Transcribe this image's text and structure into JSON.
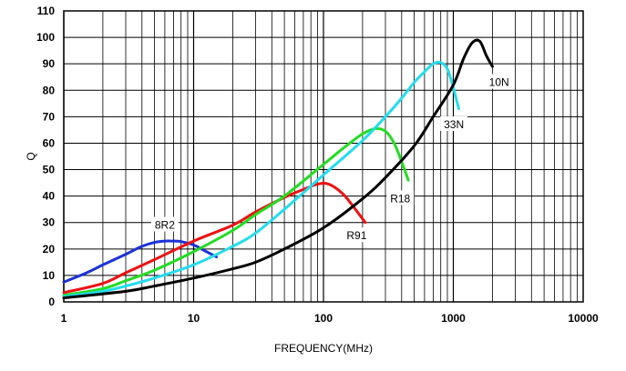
{
  "chart_data": {
    "type": "line",
    "x_scale": "log",
    "title": "",
    "xlabel": "FREQUENCY(MHz)",
    "ylabel": "Q",
    "xlim": [
      1,
      10000
    ],
    "ylim": [
      0,
      110
    ],
    "grid": true,
    "x_ticks": [
      {
        "value": 1,
        "label": "1"
      },
      {
        "value": 10,
        "label": "10"
      },
      {
        "value": 100,
        "label": "100"
      },
      {
        "value": 1000,
        "label": "1000"
      },
      {
        "value": 10000,
        "label": "10000"
      }
    ],
    "y_ticks": [
      {
        "value": 0,
        "label": "0"
      },
      {
        "value": 10,
        "label": "10"
      },
      {
        "value": 20,
        "label": "20"
      },
      {
        "value": 30,
        "label": "30"
      },
      {
        "value": 40,
        "label": "40"
      },
      {
        "value": 50,
        "label": "50"
      },
      {
        "value": 60,
        "label": "60"
      },
      {
        "value": 70,
        "label": "70"
      },
      {
        "value": 80,
        "label": "80"
      },
      {
        "value": 90,
        "label": "90"
      },
      {
        "value": 100,
        "label": "100"
      },
      {
        "value": 110,
        "label": "110"
      }
    ],
    "series": [
      {
        "name": "8R2",
        "color": "#1a32d8",
        "label_at": [
          6,
          28
        ],
        "points": [
          [
            1,
            7.5
          ],
          [
            1.5,
            11
          ],
          [
            2,
            14
          ],
          [
            3,
            18
          ],
          [
            4,
            21
          ],
          [
            5,
            22.5
          ],
          [
            6,
            23
          ],
          [
            7,
            23
          ],
          [
            8,
            22.8
          ],
          [
            10,
            21.5
          ],
          [
            12,
            19.5
          ],
          [
            15,
            17
          ]
        ]
      },
      {
        "name": "R91",
        "color": "#ee1111",
        "label_at": [
          180,
          24
        ],
        "points": [
          [
            1,
            3.5
          ],
          [
            2,
            7
          ],
          [
            3,
            11
          ],
          [
            5,
            16
          ],
          [
            10,
            23
          ],
          [
            20,
            29
          ],
          [
            30,
            34
          ],
          [
            50,
            39.5
          ],
          [
            70,
            42.5
          ],
          [
            90,
            44.5
          ],
          [
            110,
            44.5
          ],
          [
            140,
            41
          ],
          [
            170,
            36
          ],
          [
            210,
            30
          ]
        ]
      },
      {
        "name": "R18",
        "color": "#22dd22",
        "label_at": [
          390,
          38
        ],
        "points": [
          [
            1,
            2.5
          ],
          [
            2,
            5
          ],
          [
            3,
            8
          ],
          [
            5,
            12
          ],
          [
            10,
            19
          ],
          [
            20,
            27
          ],
          [
            30,
            33
          ],
          [
            50,
            40
          ],
          [
            100,
            52
          ],
          [
            150,
            59
          ],
          [
            200,
            63.5
          ],
          [
            250,
            65.5
          ],
          [
            300,
            64.5
          ],
          [
            350,
            60
          ],
          [
            400,
            53
          ],
          [
            450,
            46
          ]
        ]
      },
      {
        "name": "33N",
        "color": "#22ddee",
        "label_at": [
          1010,
          66
        ],
        "points": [
          [
            1,
            2
          ],
          [
            2,
            4
          ],
          [
            3,
            6
          ],
          [
            5,
            9
          ],
          [
            10,
            14
          ],
          [
            20,
            21
          ],
          [
            30,
            26
          ],
          [
            50,
            35
          ],
          [
            100,
            48
          ],
          [
            200,
            61
          ],
          [
            300,
            70
          ],
          [
            400,
            77
          ],
          [
            500,
            83
          ],
          [
            600,
            87
          ],
          [
            700,
            90
          ],
          [
            800,
            90.5
          ],
          [
            900,
            88
          ],
          [
            1000,
            81
          ],
          [
            1100,
            73
          ]
        ]
      },
      {
        "name": "10N",
        "color": "#000000",
        "label_at": [
          2250,
          82
        ],
        "points": [
          [
            1,
            1.5
          ],
          [
            3,
            4
          ],
          [
            5,
            6
          ],
          [
            10,
            9
          ],
          [
            20,
            12.5
          ],
          [
            30,
            15
          ],
          [
            50,
            20
          ],
          [
            100,
            28
          ],
          [
            200,
            39
          ],
          [
            300,
            47
          ],
          [
            500,
            59
          ],
          [
            700,
            70
          ],
          [
            1000,
            82
          ],
          [
            1200,
            92
          ],
          [
            1400,
            98
          ],
          [
            1600,
            98.5
          ],
          [
            1800,
            93
          ],
          [
            2000,
            89
          ]
        ]
      }
    ]
  }
}
